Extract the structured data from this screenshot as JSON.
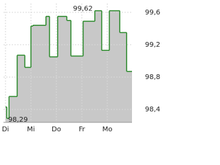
{
  "chart_data": {
    "type": "step-area",
    "annotations": [
      {
        "text": "99,62",
        "x": 3.51,
        "y": 99.62
      },
      {
        "text": "98,29",
        "x": 0.05,
        "y": 98.29
      }
    ],
    "series": [
      {
        "color": "#2e8b2e",
        "fill": "#c8c8c8",
        "x": [
          0,
          0.05,
          0.14,
          0.46,
          0.76,
          1.0,
          1.08,
          1.59,
          1.73,
          2.05,
          2.41,
          2.57,
          3.05,
          3.51,
          3.78,
          4.08,
          4.49,
          4.76
        ],
        "values": [
          98.43,
          98.29,
          98.56,
          99.07,
          98.92,
          99.43,
          99.44,
          99.55,
          99.05,
          99.55,
          99.5,
          99.06,
          99.49,
          99.62,
          99.13,
          99.62,
          99.35,
          98.87
        ]
      }
    ],
    "xlim": [
      -0.08,
      4.97
    ],
    "xticks": [
      {
        "value": 0,
        "label": "Di"
      },
      {
        "value": 1,
        "label": "Mi"
      },
      {
        "value": 2,
        "label": "Do"
      },
      {
        "value": 3,
        "label": "Fr"
      },
      {
        "value": 4,
        "label": "Mo"
      }
    ],
    "ylim": [
      98.24,
      99.71
    ],
    "yticks": [
      {
        "value": 98.4,
        "label": "98,4"
      },
      {
        "value": 98.8,
        "label": "98,8"
      },
      {
        "value": 99.2,
        "label": "99,2"
      },
      {
        "value": 99.6,
        "label": "99,6"
      }
    ],
    "grid": true
  }
}
